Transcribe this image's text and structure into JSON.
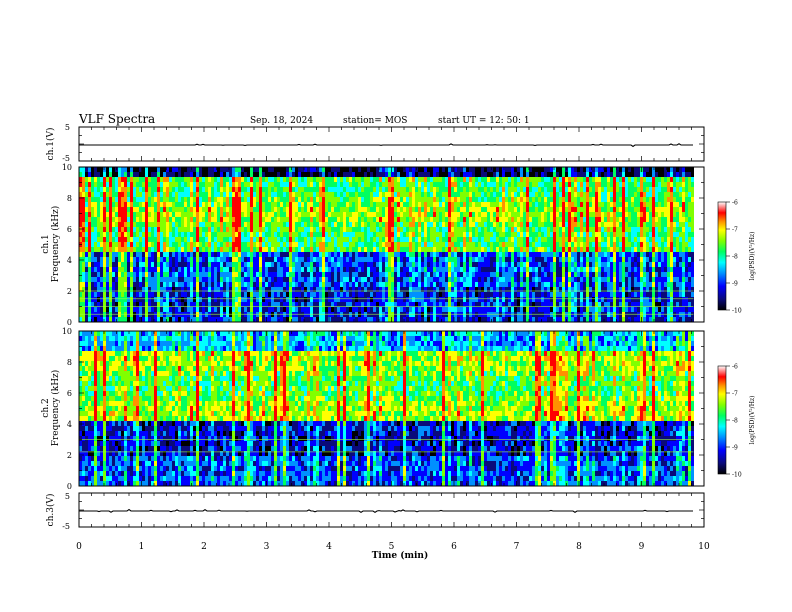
{
  "header": {
    "title": "VLF Spectra",
    "date": "Sep. 18, 2024",
    "station": "station= MOS",
    "start": "start  UT =   12: 50: 1"
  },
  "colors": {
    "colormap": [
      "#000000",
      "#0a0a7a",
      "#0000ff",
      "#0090ff",
      "#00ffff",
      "#00ff60",
      "#80ff00",
      "#ffff00",
      "#ff9000",
      "#ff0000",
      "#ffffff"
    ],
    "trace": "#000000"
  },
  "chart_data": [
    {
      "type": "line",
      "panel": "ch1-waveform",
      "ylabel": "ch.1(V)",
      "ylim": [
        -5,
        5
      ],
      "yticks": [
        "5",
        "-5"
      ],
      "xlim": [
        0,
        10
      ],
      "series": [
        {
          "values_note": "near-constant trace",
          "level": 0.0
        }
      ]
    },
    {
      "type": "heatmap",
      "panel": "ch1-spectrogram",
      "ylabel": "ch.1\nFrequency (kHz)",
      "ylabel_lines": [
        "ch.1",
        "Frequency (kHz)"
      ],
      "ylim": [
        0,
        10
      ],
      "yticks": [
        "0",
        "2",
        "4",
        "6",
        "8",
        "10"
      ],
      "xlim": [
        0,
        10
      ],
      "data_end_min": 9.83,
      "colorbar": {
        "label": "log(PSD)(V²/Hz)",
        "ticks": [
          "-6",
          "-7",
          "-8",
          "-9",
          "-10"
        ],
        "range": [
          -10,
          -6
        ]
      },
      "band_lines_khz": [
        0.5,
        1.0,
        1.5,
        2.0
      ]
    },
    {
      "type": "heatmap",
      "panel": "ch2-spectrogram",
      "ylabel": "ch.2\nFrequency (kHz)",
      "ylabel_lines": [
        "ch.2",
        "Frequency (kHz)"
      ],
      "ylim": [
        0,
        10
      ],
      "yticks": [
        "0",
        "2",
        "4",
        "6",
        "8",
        "10"
      ],
      "xlim": [
        0,
        10
      ],
      "data_end_min": 9.83,
      "colorbar": {
        "label": "log(PSD)(V²/Hz)",
        "ticks": [
          "-6",
          "-7",
          "-8",
          "-9",
          "-10"
        ],
        "range": [
          -10,
          -6
        ]
      },
      "band_lines_khz": [
        2.2,
        3.0
      ]
    },
    {
      "type": "line",
      "panel": "ch3-waveform",
      "ylabel": "ch.3(V)",
      "ylim": [
        -5,
        5
      ],
      "yticks": [
        "5",
        "-5"
      ],
      "xlim": [
        0,
        10
      ],
      "xlabel": "Time  (min)",
      "xticks": [
        "0",
        "1",
        "2",
        "3",
        "4",
        "5",
        "6",
        "7",
        "8",
        "9",
        "10"
      ],
      "series": [
        {
          "values_note": "near-constant trace",
          "level": 0.0
        }
      ]
    }
  ]
}
